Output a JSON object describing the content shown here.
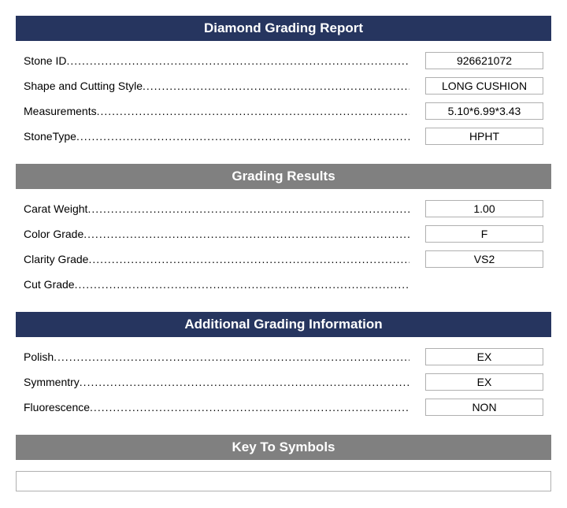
{
  "colors": {
    "header_navy": "#26355f",
    "header_gray": "#808080",
    "header_text": "#ffffff",
    "border_gray": "#b0b0b0",
    "text": "#000000",
    "background": "#ffffff"
  },
  "sections": [
    {
      "title": "Diamond Grading Report",
      "header_bg": "#26355f",
      "rows": [
        {
          "label": "Stone ID",
          "value": "926621072"
        },
        {
          "label": "Shape and Cutting Style",
          "value": "LONG CUSHION"
        },
        {
          "label": "Measurements",
          "value": "5.10*6.99*3.43"
        },
        {
          "label": "StoneType",
          "value": "HPHT"
        }
      ]
    },
    {
      "title": "Grading Results",
      "header_bg": "#808080",
      "rows": [
        {
          "label": "Carat Weight",
          "value": "1.00"
        },
        {
          "label": "Color Grade",
          "value": "F"
        },
        {
          "label": "Clarity Grade",
          "value": "VS2"
        },
        {
          "label": "Cut Grade",
          "value": ""
        }
      ]
    },
    {
      "title": "Additional Grading Information",
      "header_bg": "#26355f",
      "rows": [
        {
          "label": "Polish",
          "value": "EX"
        },
        {
          "label": "Symmentry",
          "value": "EX"
        },
        {
          "label": "Fluorescence",
          "value": "NON"
        }
      ]
    }
  ],
  "symbols": {
    "title": "Key To Symbols",
    "header_bg": "#808080",
    "content": ""
  }
}
